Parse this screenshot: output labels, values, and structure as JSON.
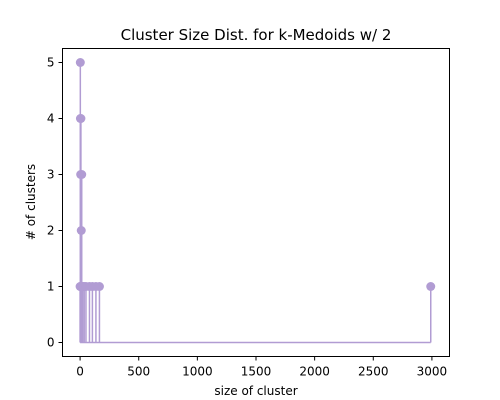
{
  "chart_data": {
    "type": "stem",
    "title": "Cluster Size Dist. for k-Medoids w/ 2",
    "xlabel": "size of cluster",
    "ylabel": "# of clusters",
    "xlim": [
      -150,
      3150
    ],
    "ylim": [
      -0.25,
      5.25
    ],
    "xticks": [
      0,
      500,
      1000,
      1500,
      2000,
      2500,
      3000
    ],
    "yticks": [
      0,
      1,
      2,
      3,
      4,
      5
    ],
    "grid": false,
    "color": "#b19cd3",
    "series": [
      {
        "points": [
          {
            "x": 0,
            "y": 1
          },
          {
            "x": 2,
            "y": 5
          },
          {
            "x": 3,
            "y": 4
          },
          {
            "x": 4,
            "y": 1
          },
          {
            "x": 5,
            "y": 3
          },
          {
            "x": 6,
            "y": 1
          },
          {
            "x": 7,
            "y": 4
          },
          {
            "x": 8,
            "y": 1
          },
          {
            "x": 10,
            "y": 2
          },
          {
            "x": 12,
            "y": 1
          },
          {
            "x": 14,
            "y": 3
          },
          {
            "x": 18,
            "y": 1
          },
          {
            "x": 22,
            "y": 1
          },
          {
            "x": 35,
            "y": 1
          },
          {
            "x": 50,
            "y": 1
          },
          {
            "x": 80,
            "y": 1
          },
          {
            "x": 105,
            "y": 1
          },
          {
            "x": 135,
            "y": 1
          },
          {
            "x": 165,
            "y": 1
          },
          {
            "x": 2990,
            "y": 1
          }
        ]
      }
    ]
  }
}
